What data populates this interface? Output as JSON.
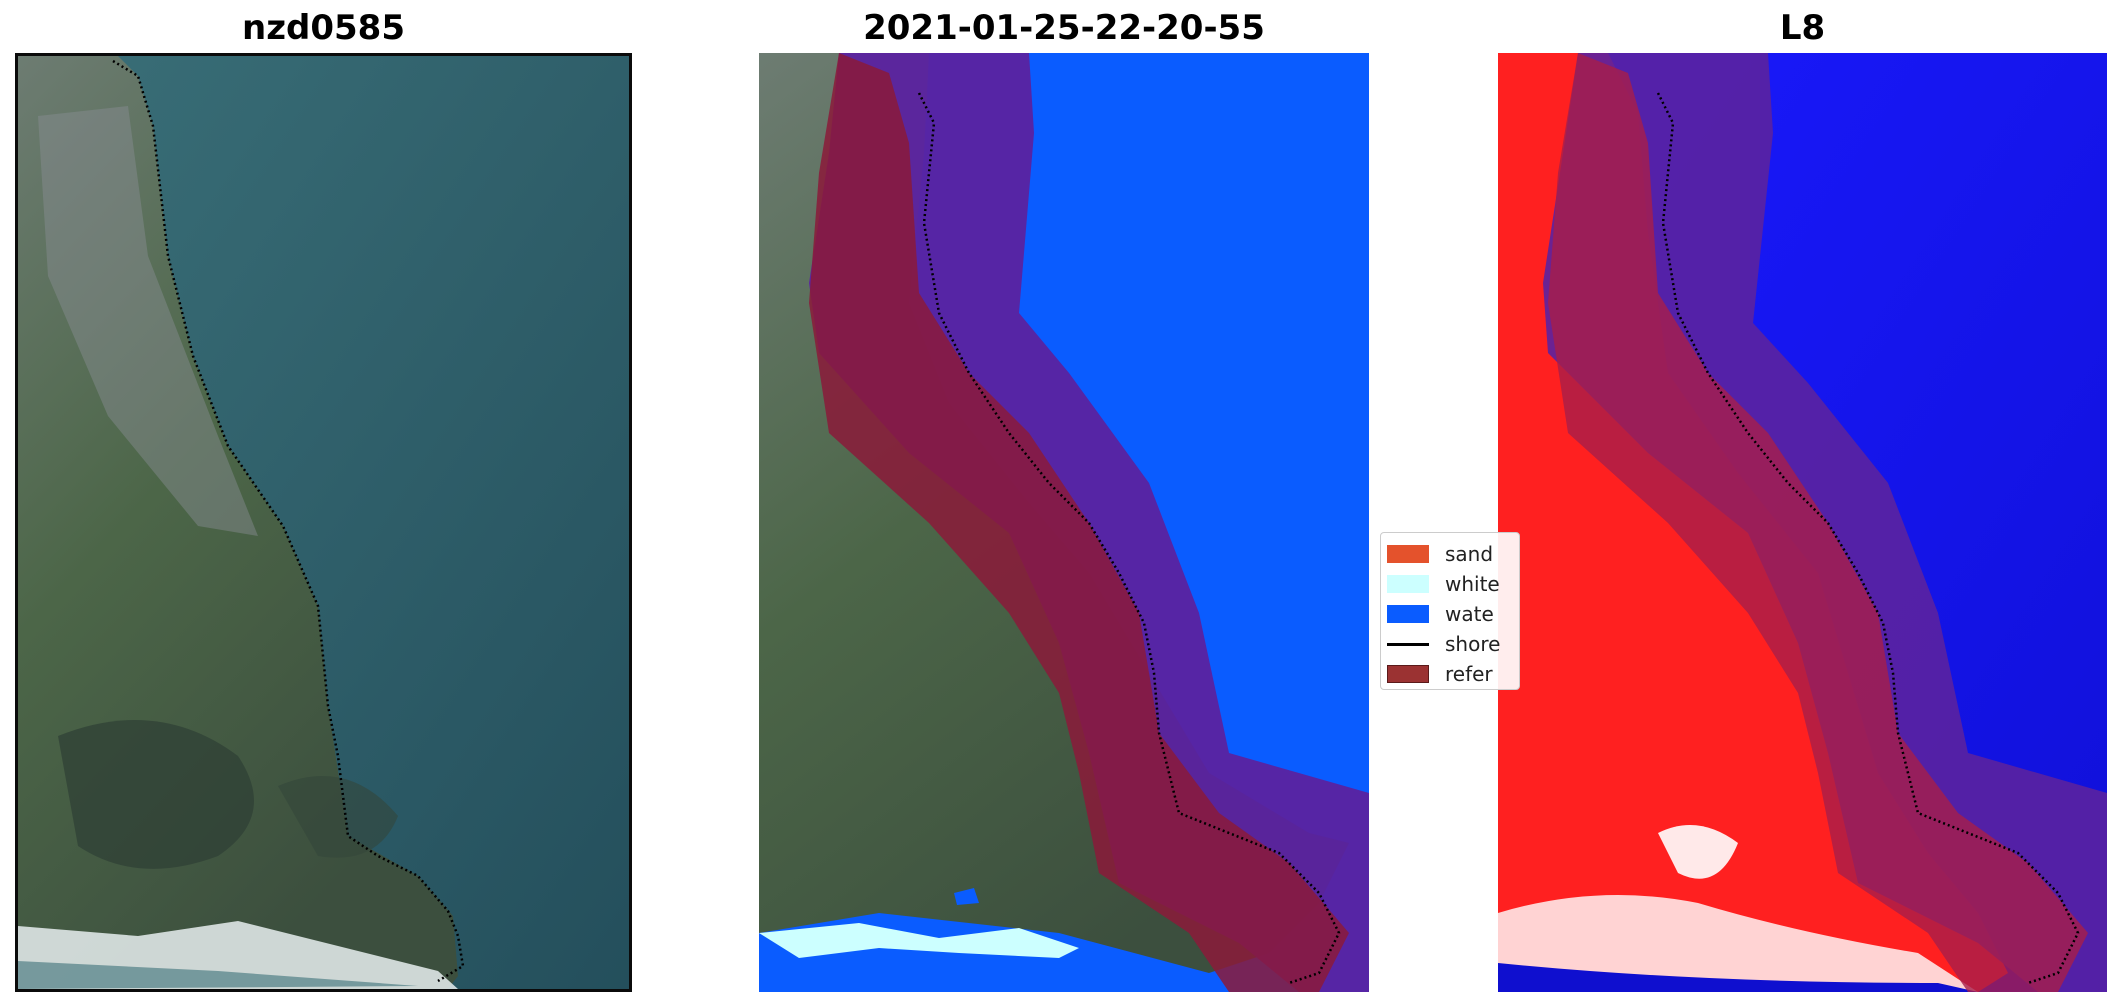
{
  "titles": {
    "panel1": "nzd0585",
    "panel2": "2021-01-25-22-20-55",
    "panel3": "L8"
  },
  "legend": [
    {
      "label": "sand",
      "color": "#e4522c",
      "kind": "patch"
    },
    {
      "label": "white",
      "color": "#ccffff",
      "kind": "patch"
    },
    {
      "label": "wate",
      "color": "#0a5cff",
      "kind": "patch"
    },
    {
      "label": "shore",
      "color": "#000000",
      "kind": "line"
    },
    {
      "label": "refer",
      "color": "#9b3232",
      "kind": "patch"
    }
  ],
  "colors": {
    "ocean": "#2c5a66",
    "land_green": "#4f6a4d",
    "water_class": "#0a5cff",
    "whitewater_class": "#ccffff",
    "reference_buffer": "#8b1a3a",
    "overlay_purple": "#5b22a0",
    "mndwi_land": "#ff2020",
    "mndwi_water": "#1010f0",
    "shoreline": "#000000"
  }
}
